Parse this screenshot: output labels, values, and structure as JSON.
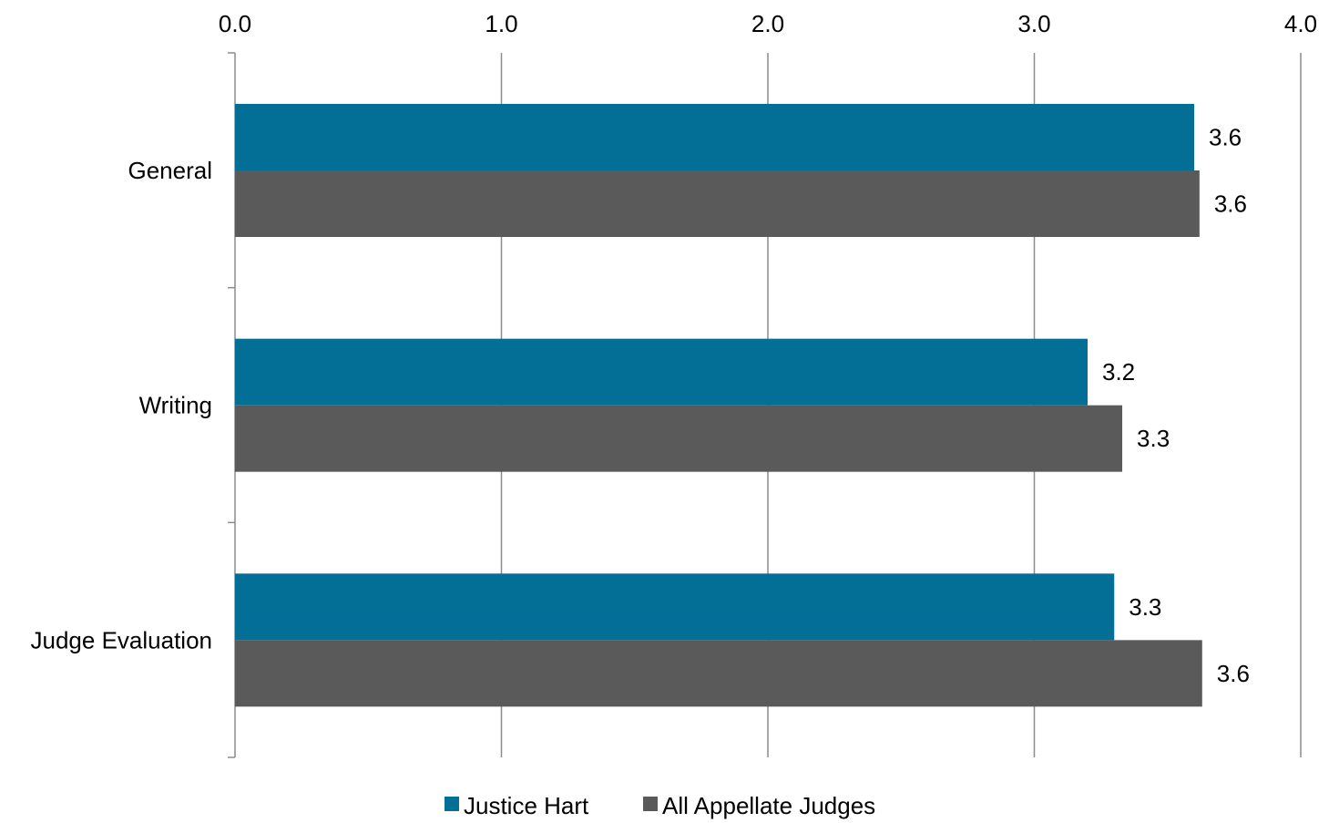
{
  "chart_data": {
    "type": "bar",
    "orientation": "horizontal",
    "title": "",
    "xlabel": "",
    "ylabel": "",
    "xlim": [
      0,
      4
    ],
    "x_ticks": [
      "0.0",
      "1.0",
      "2.0",
      "3.0",
      "4.0"
    ],
    "x_tick_values": [
      0,
      1,
      2,
      3,
      4
    ],
    "x_axis_position": "top",
    "grid": true,
    "categories": [
      "General",
      "Writing",
      "Judge Evaluation"
    ],
    "series": [
      {
        "name": "Justice Hart",
        "color": "#036f96",
        "values": [
          3.6,
          3.2,
          3.3
        ],
        "labels": [
          "3.6",
          "3.2",
          "3.3"
        ]
      },
      {
        "name": "All Appellate Judges",
        "color": "#5a5a5a",
        "values": [
          3.62,
          3.33,
          3.63
        ],
        "labels": [
          "3.6",
          "3.3",
          "3.6"
        ]
      }
    ],
    "legend": {
      "position": "bottom"
    }
  }
}
